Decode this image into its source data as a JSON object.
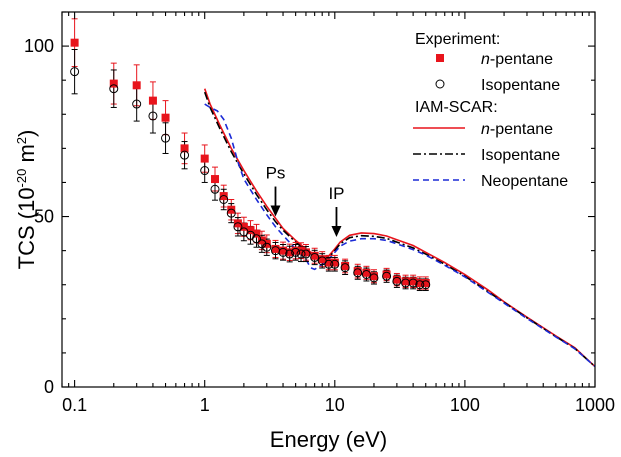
{
  "chart_data": {
    "type": "scatter",
    "title": "",
    "xlabel": "Energy (eV)",
    "ylabel": {
      "main": "TCS (10",
      "exp": "-20",
      "mid": " m",
      "exp2": "2",
      "close": ")"
    },
    "xscale": "log",
    "xlim": [
      0.08,
      1000
    ],
    "ylim": [
      0,
      110
    ],
    "x_ticks": [
      {
        "value": 0.1,
        "label": "0.1"
      },
      {
        "value": 1,
        "label": "1"
      },
      {
        "value": 10,
        "label": "10"
      },
      {
        "value": 100,
        "label": "100"
      },
      {
        "value": 1000,
        "label": "1000"
      }
    ],
    "y_ticks": [
      {
        "value": 0,
        "label": "0"
      },
      {
        "value": 50,
        "label": "50"
      },
      {
        "value": 100,
        "label": "100"
      }
    ],
    "legend": {
      "placement": "top-right",
      "experiment_header": "Experiment:",
      "model_header": "IAM-SCAR:",
      "entries": [
        {
          "label_italic": "n",
          "label_rest": "-pentane",
          "kind": "marker-square"
        },
        {
          "label_italic": "",
          "label_rest": "Isopentane",
          "kind": "marker-circle"
        },
        {
          "label_italic": "n",
          "label_rest": "-pentane",
          "kind": "line-solid"
        },
        {
          "label_italic": "",
          "label_rest": "Isopentane",
          "kind": "line-dashdot"
        },
        {
          "label_italic": "",
          "label_rest": "Neopentane",
          "kind": "line-dashed"
        }
      ]
    },
    "annotations": [
      {
        "text": "Ps",
        "x": 3.5,
        "y_tip": 50
      },
      {
        "text": "IP",
        "x": 10.3,
        "y_tip": 44
      }
    ],
    "series": [
      {
        "kind": "experiment",
        "marker": "square",
        "color": "#e8141c",
        "points": [
          [
            0.1,
            101,
            7
          ],
          [
            0.2,
            89,
            6
          ],
          [
            0.3,
            88.5,
            6
          ],
          [
            0.4,
            84,
            5.5
          ],
          [
            0.5,
            79,
            5
          ],
          [
            0.7,
            70,
            4.5
          ],
          [
            1.0,
            67,
            4
          ],
          [
            1.2,
            61,
            3.5
          ],
          [
            1.4,
            56,
            3.2
          ],
          [
            1.6,
            52,
            3
          ],
          [
            1.8,
            48,
            3
          ],
          [
            2.0,
            47,
            2.8
          ],
          [
            2.25,
            46,
            2.8
          ],
          [
            2.5,
            45,
            2.7
          ],
          [
            2.75,
            43,
            2.7
          ],
          [
            3.0,
            42,
            2.6
          ],
          [
            3.5,
            40.5,
            2.5
          ],
          [
            4.0,
            40,
            2.5
          ],
          [
            4.5,
            39.5,
            2.4
          ],
          [
            5.0,
            40,
            2.4
          ],
          [
            5.5,
            40,
            2.3
          ],
          [
            6.0,
            39.5,
            2.3
          ],
          [
            7.0,
            38.5,
            2.2
          ],
          [
            8.0,
            37.5,
            2.2
          ],
          [
            9.0,
            36.5,
            2.1
          ],
          [
            10,
            36.5,
            2.1
          ],
          [
            12,
            35.5,
            2
          ],
          [
            15,
            34,
            2
          ],
          [
            17.5,
            33.5,
            1.9
          ],
          [
            20,
            32.5,
            1.9
          ],
          [
            25,
            33,
            1.8
          ],
          [
            30,
            31.5,
            1.8
          ],
          [
            35,
            31,
            1.8
          ],
          [
            40,
            31,
            1.8
          ],
          [
            45,
            30.5,
            1.8
          ],
          [
            50,
            30.5,
            1.8
          ]
        ]
      },
      {
        "kind": "experiment",
        "marker": "circle",
        "color": "#000000",
        "points": [
          [
            0.1,
            92.5,
            6.5
          ],
          [
            0.2,
            87.5,
            5.5
          ],
          [
            0.3,
            83,
            5
          ],
          [
            0.4,
            79.5,
            5
          ],
          [
            0.5,
            73,
            4.5
          ],
          [
            0.7,
            68,
            4
          ],
          [
            1.0,
            63.5,
            3.5
          ],
          [
            1.2,
            58,
            3.2
          ],
          [
            1.4,
            55,
            3
          ],
          [
            1.6,
            51,
            2.8
          ],
          [
            1.8,
            47,
            2.7
          ],
          [
            2.0,
            45.5,
            2.6
          ],
          [
            2.25,
            44.5,
            2.6
          ],
          [
            2.5,
            43.5,
            2.5
          ],
          [
            2.75,
            42,
            2.5
          ],
          [
            3.0,
            41,
            2.4
          ],
          [
            3.5,
            40,
            2.4
          ],
          [
            4.0,
            39.5,
            2.3
          ],
          [
            4.5,
            39,
            2.3
          ],
          [
            5.0,
            39.5,
            2.3
          ],
          [
            5.5,
            39,
            2.2
          ],
          [
            6.0,
            39,
            2.2
          ],
          [
            7.0,
            38,
            2.1
          ],
          [
            8.0,
            37,
            2.1
          ],
          [
            9.0,
            36,
            2
          ],
          [
            10,
            36,
            2
          ],
          [
            12,
            35,
            2
          ],
          [
            15,
            33.5,
            1.9
          ],
          [
            17.5,
            33,
            1.9
          ],
          [
            20,
            32,
            1.8
          ],
          [
            25,
            32.5,
            1.8
          ],
          [
            30,
            31,
            1.8
          ],
          [
            35,
            30.5,
            1.7
          ],
          [
            40,
            30.5,
            1.7
          ],
          [
            45,
            30,
            1.7
          ],
          [
            50,
            30,
            1.7
          ]
        ]
      },
      {
        "kind": "model",
        "style": "solid",
        "color": "#e8141c",
        "points": [
          [
            1.0,
            87.5
          ],
          [
            1.1,
            83
          ],
          [
            1.3,
            77
          ],
          [
            1.6,
            70
          ],
          [
            2.0,
            63.5
          ],
          [
            2.5,
            57.5
          ],
          [
            3.0,
            53
          ],
          [
            3.5,
            49.5
          ],
          [
            4.0,
            46.5
          ],
          [
            5.0,
            43
          ],
          [
            6.0,
            40.5
          ],
          [
            7.0,
            38.8
          ],
          [
            8.0,
            38
          ],
          [
            9.0,
            38.5
          ],
          [
            10,
            40.5
          ],
          [
            11,
            42.5
          ],
          [
            13,
            44.5
          ],
          [
            16,
            45.2
          ],
          [
            20,
            45
          ],
          [
            25,
            44.3
          ],
          [
            30,
            43.2
          ],
          [
            40,
            41.5
          ],
          [
            50,
            39.5
          ],
          [
            70,
            36.5
          ],
          [
            100,
            33
          ],
          [
            150,
            28.5
          ],
          [
            200,
            25
          ],
          [
            300,
            20.5
          ],
          [
            500,
            15
          ],
          [
            700,
            11.5
          ],
          [
            1000,
            6
          ]
        ]
      },
      {
        "kind": "model",
        "style": "dashdot",
        "color": "#000000",
        "points": [
          [
            1.0,
            86.5
          ],
          [
            1.1,
            82
          ],
          [
            1.3,
            76
          ],
          [
            1.6,
            69
          ],
          [
            2.0,
            62.5
          ],
          [
            2.5,
            56.5
          ],
          [
            3.0,
            52
          ],
          [
            3.5,
            48.5
          ],
          [
            4.0,
            46
          ],
          [
            5.0,
            42.5
          ],
          [
            6.0,
            40
          ],
          [
            7.0,
            38.3
          ],
          [
            8.0,
            37.5
          ],
          [
            9.0,
            38
          ],
          [
            10,
            40
          ],
          [
            11,
            42
          ],
          [
            13,
            43.8
          ],
          [
            16,
            44.4
          ],
          [
            20,
            44.2
          ],
          [
            25,
            43.6
          ],
          [
            30,
            42.5
          ],
          [
            40,
            40.8
          ],
          [
            50,
            39
          ],
          [
            70,
            36
          ],
          [
            100,
            32.5
          ],
          [
            150,
            28
          ],
          [
            200,
            24.8
          ],
          [
            300,
            20.3
          ],
          [
            500,
            14.8
          ],
          [
            700,
            11.3
          ],
          [
            1000,
            6
          ]
        ]
      },
      {
        "kind": "model",
        "style": "dashed",
        "color": "#1c2bd6",
        "points": [
          [
            1.0,
            83
          ],
          [
            1.1,
            82
          ],
          [
            1.25,
            81
          ],
          [
            1.4,
            78.5
          ],
          [
            1.6,
            73
          ],
          [
            1.8,
            66
          ],
          [
            2.0,
            61
          ],
          [
            2.5,
            55
          ],
          [
            3.0,
            50.5
          ],
          [
            3.5,
            47
          ],
          [
            4.0,
            44.5
          ],
          [
            5.0,
            40.5
          ],
          [
            6.0,
            37.5
          ],
          [
            6.5,
            35
          ],
          [
            7.0,
            34.5
          ],
          [
            8.0,
            36
          ],
          [
            9.0,
            37.5
          ],
          [
            10,
            39.5
          ],
          [
            11,
            41.3
          ],
          [
            13,
            42.8
          ],
          [
            16,
            43.5
          ],
          [
            20,
            43.5
          ],
          [
            25,
            43
          ],
          [
            30,
            42
          ],
          [
            40,
            40.3
          ],
          [
            50,
            38.7
          ],
          [
            70,
            35.7
          ],
          [
            100,
            32.3
          ],
          [
            150,
            27.8
          ],
          [
            200,
            24.6
          ],
          [
            300,
            20.1
          ],
          [
            500,
            14.7
          ],
          [
            700,
            11.2
          ],
          [
            1000,
            6
          ]
        ]
      }
    ]
  }
}
